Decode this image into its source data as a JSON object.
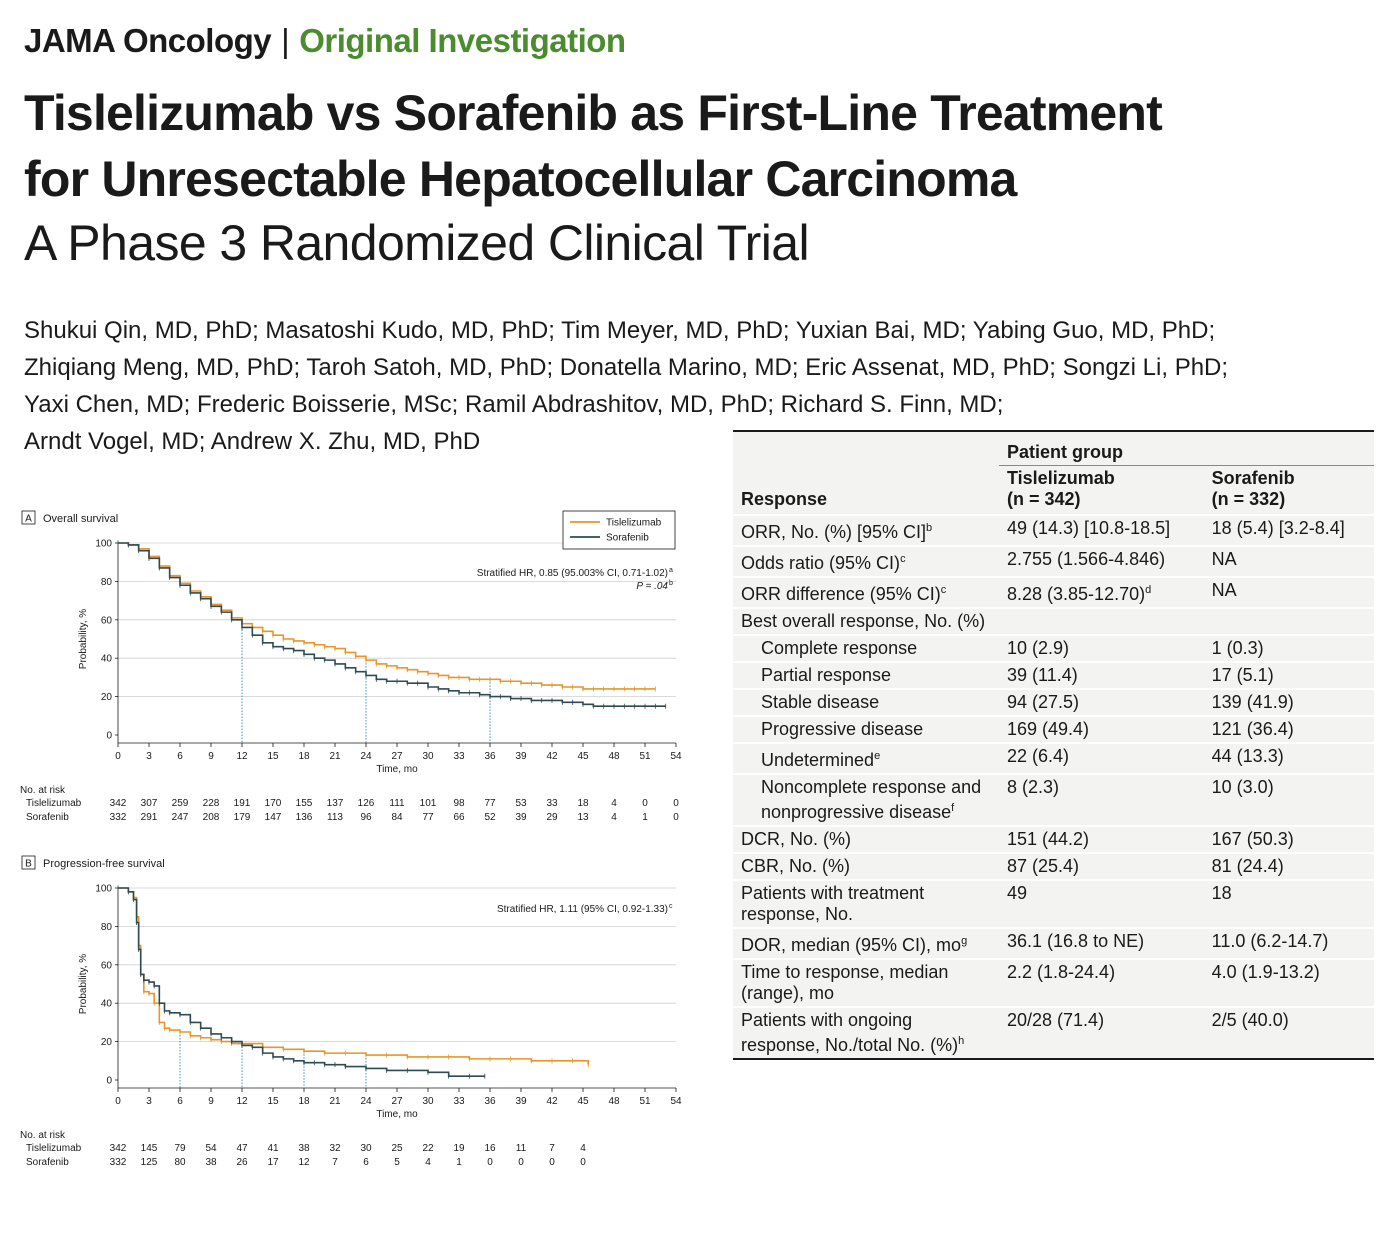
{
  "header": {
    "journal": "JAMA Oncology",
    "separator": "|",
    "section": "Original Investigation",
    "title_line1": "Tislelizumab vs Sorafenib as First-Line Treatment",
    "title_line2": "for Unresectable Hepatocellular Carcinoma",
    "subtitle": "A Phase 3 Randomized Clinical Trial",
    "authors": [
      "Shukui Qin, MD, PhD; Masatoshi Kudo, MD, PhD; Tim Meyer, MD, PhD; Yuxian Bai, MD; Yabing Guo, MD, PhD;",
      "Zhiqiang Meng, MD, PhD; Taroh Satoh, MD, PhD; Donatella Marino, MD; Eric Assenat, MD, PhD; Songzi Li, PhD;",
      "Yaxi Chen, MD; Frederic Boisserie, MSc; Ramil Abdrashitov, MD, PhD; Richard S. Finn, MD;",
      "Arndt Vogel, MD; Andrew X. Zhu, MD, PhD"
    ]
  },
  "colors": {
    "tislelizumab": "#e8952a",
    "sorafenib": "#2e4a55",
    "accent_green": "#4a8c2e"
  },
  "table": {
    "patient_group": "Patient group",
    "col_response": "Response",
    "col_tis": "Tislelizumab",
    "col_tis_n": "(n = 342)",
    "col_sor": "Sorafenib",
    "col_sor_n": "(n = 332)",
    "rows": [
      {
        "label": "ORR, No. (%) [95% CI]",
        "sup": "b",
        "tis": "49 (14.3) [10.8-18.5]",
        "tis_sup": "",
        "sor": "18 (5.4) [3.2-8.4]"
      },
      {
        "label": "Odds ratio (95% CI)",
        "sup": "c",
        "tis": "2.755 (1.566-4.846)",
        "tis_sup": "",
        "sor": "NA"
      },
      {
        "label": "ORR difference (95% CI)",
        "sup": "c",
        "tis": "8.28 (3.85-12.70)",
        "tis_sup": "d",
        "sor": "NA"
      },
      {
        "label": "Best overall response, No. (%)",
        "sup": "",
        "tis": "",
        "tis_sup": "",
        "sor": ""
      },
      {
        "label": "Complete response",
        "sup": "",
        "tis": "10 (2.9)",
        "tis_sup": "",
        "sor": "1 (0.3)",
        "indent": true
      },
      {
        "label": "Partial response",
        "sup": "",
        "tis": "39 (11.4)",
        "tis_sup": "",
        "sor": "17 (5.1)",
        "indent": true
      },
      {
        "label": "Stable disease",
        "sup": "",
        "tis": "94 (27.5)",
        "tis_sup": "",
        "sor": "139 (41.9)",
        "indent": true
      },
      {
        "label": "Progressive disease",
        "sup": "",
        "tis": "169 (49.4)",
        "tis_sup": "",
        "sor": "121 (36.4)",
        "indent": true
      },
      {
        "label": "Undetermined",
        "sup": "e",
        "tis": "22 (6.4)",
        "tis_sup": "",
        "sor": "44 (13.3)",
        "indent": true
      },
      {
        "label": "Noncomplete response and nonprogressive disease",
        "sup": "f",
        "tis": "8 (2.3)",
        "tis_sup": "",
        "sor": "10 (3.0)",
        "indent": true
      },
      {
        "label": "DCR, No. (%)",
        "sup": "",
        "tis": "151 (44.2)",
        "tis_sup": "",
        "sor": "167 (50.3)"
      },
      {
        "label": "CBR, No. (%)",
        "sup": "",
        "tis": "87 (25.4)",
        "tis_sup": "",
        "sor": "81 (24.4)"
      },
      {
        "label": "Patients with treatment response, No.",
        "sup": "",
        "tis": "49",
        "tis_sup": "",
        "sor": "18"
      },
      {
        "label": "DOR, median (95% CI), mo",
        "sup": "g",
        "tis": "36.1 (16.8 to NE)",
        "tis_sup": "",
        "sor": "11.0 (6.2-14.7)"
      },
      {
        "label": "Time to response, median (range), mo",
        "sup": "",
        "tis": "2.2 (1.8-24.4)",
        "tis_sup": "",
        "sor": "4.0 (1.9-13.2)"
      },
      {
        "label": "Patients with ongoing response, No./total No. (%)",
        "sup": "h",
        "tis": "20/28 (71.4)",
        "tis_sup": "",
        "sor": "2/5 (40.0)"
      }
    ]
  },
  "chart_data": [
    {
      "type": "line",
      "panel": "A",
      "title": "Overall survival",
      "xlabel": "Time, mo",
      "ylabel": "Probability, %",
      "xlim": [
        0,
        54
      ],
      "ylim": [
        0,
        100
      ],
      "xticks": [
        0,
        3,
        6,
        9,
        12,
        15,
        18,
        21,
        24,
        27,
        30,
        33,
        36,
        39,
        42,
        45,
        48,
        51,
        54
      ],
      "yticks": [
        0,
        20,
        40,
        60,
        80,
        100
      ],
      "grid": true,
      "legend": "top-right",
      "annotation_line1": "Stratified HR, 0.85 (95.003% CI, 0.71-1.02)",
      "annotation_line1_sup": "a",
      "annotation_line2": "P = .04",
      "annotation_line2_sup": "b",
      "reference_times": [
        12,
        24,
        36
      ],
      "series": [
        {
          "name": "Tislelizumab",
          "x": [
            0,
            1,
            2,
            3,
            4,
            5,
            6,
            7,
            8,
            9,
            10,
            11,
            12,
            13,
            14,
            15,
            16,
            17,
            18,
            19,
            20,
            21,
            22,
            23,
            24,
            25,
            26,
            27,
            28,
            29,
            30,
            31,
            32,
            33,
            34,
            35,
            36,
            37,
            38,
            39,
            40,
            41,
            42,
            43,
            44,
            45,
            46,
            47,
            48,
            49,
            50,
            51,
            52
          ],
          "y": [
            100,
            99,
            97,
            93,
            88,
            83,
            79,
            75,
            72,
            68,
            65,
            61,
            58,
            56,
            54,
            52,
            50,
            49,
            48,
            47,
            46,
            45,
            43,
            41,
            39,
            37,
            36,
            35,
            34,
            33,
            32,
            31,
            30,
            30,
            29,
            29,
            29,
            28,
            28,
            27,
            27,
            26,
            26,
            25,
            25,
            24,
            24,
            24,
            24,
            24,
            24,
            24,
            24
          ]
        },
        {
          "name": "Sorafenib",
          "x": [
            0,
            1,
            2,
            3,
            4,
            5,
            6,
            7,
            8,
            9,
            10,
            11,
            12,
            13,
            14,
            15,
            16,
            17,
            18,
            19,
            20,
            21,
            22,
            23,
            24,
            25,
            26,
            27,
            28,
            29,
            30,
            31,
            32,
            33,
            34,
            35,
            36,
            37,
            38,
            39,
            40,
            41,
            42,
            43,
            44,
            45,
            46,
            47,
            48,
            49,
            50,
            51,
            52,
            53
          ],
          "y": [
            100,
            99,
            96,
            92,
            87,
            82,
            78,
            74,
            71,
            67,
            64,
            60,
            56,
            52,
            48,
            46,
            45,
            44,
            42,
            40,
            39,
            37,
            35,
            33,
            31,
            29,
            28,
            28,
            27,
            27,
            25,
            24,
            23,
            22,
            22,
            21,
            20,
            20,
            19,
            19,
            18,
            18,
            18,
            17,
            17,
            16,
            15,
            15,
            15,
            15,
            15,
            15,
            15,
            15
          ]
        }
      ],
      "risk_table": {
        "label": "No. at risk",
        "rows": [
          {
            "name": "Tislelizumab",
            "values": [
              "342",
              "307",
              "259",
              "228",
              "191",
              "170",
              "155",
              "137",
              "126",
              "111",
              "101",
              "98",
              "77",
              "53",
              "33",
              "18",
              "4",
              "0",
              "0"
            ]
          },
          {
            "name": "Sorafenib",
            "values": [
              "332",
              "291",
              "247",
              "208",
              "179",
              "147",
              "136",
              "113",
              "96",
              "84",
              "77",
              "66",
              "52",
              "39",
              "29",
              "13",
              "4",
              "1",
              "0"
            ]
          }
        ]
      }
    },
    {
      "type": "line",
      "panel": "B",
      "title": "Progression-free survival",
      "xlabel": "Time, mo",
      "ylabel": "Probability, %",
      "xlim": [
        0,
        54
      ],
      "ylim": [
        0,
        100
      ],
      "xticks": [
        0,
        3,
        6,
        9,
        12,
        15,
        18,
        21,
        24,
        27,
        30,
        33,
        36,
        39,
        42,
        45,
        48,
        51,
        54
      ],
      "yticks": [
        0,
        20,
        40,
        60,
        80,
        100
      ],
      "grid": true,
      "annotation_line1": "Stratified HR, 1.11 (95% CI, 0.92-1.33)",
      "annotation_line1_sup": "c",
      "reference_times": [
        6,
        12,
        18,
        24
      ],
      "series": [
        {
          "name": "Tislelizumab",
          "x": [
            0,
            1,
            1.5,
            1.8,
            2,
            2.2,
            2.5,
            3,
            3.5,
            4,
            4.5,
            5,
            6,
            7,
            8,
            9,
            10,
            11,
            12,
            14,
            16,
            18,
            20,
            22,
            24,
            26,
            28,
            30,
            32,
            34,
            36,
            38,
            40,
            42,
            44,
            45.5
          ],
          "y": [
            100,
            98,
            95,
            85,
            70,
            55,
            46,
            45,
            40,
            30,
            27,
            26,
            25,
            23,
            22,
            21,
            20,
            19,
            19,
            17,
            16,
            15,
            14,
            14,
            13,
            13,
            12,
            12,
            12,
            11,
            11,
            11,
            10,
            10,
            10,
            8
          ]
        },
        {
          "name": "Sorafenib",
          "x": [
            0,
            1,
            1.5,
            1.8,
            2,
            2.2,
            2.5,
            3,
            3.5,
            4,
            4.5,
            5,
            6,
            7,
            8,
            9,
            10,
            11,
            12,
            13,
            14,
            15,
            16,
            17,
            18,
            19,
            20,
            21,
            22,
            24,
            26,
            28,
            30,
            32,
            34,
            35.5
          ],
          "y": [
            100,
            98,
            94,
            82,
            68,
            55,
            52,
            51,
            49,
            40,
            36,
            35,
            34,
            30,
            27,
            24,
            22,
            20,
            18,
            17,
            14,
            12,
            11,
            10,
            9,
            9,
            8,
            8,
            7,
            6,
            5,
            5,
            4,
            2,
            2,
            2
          ]
        }
      ],
      "risk_table": {
        "label": "No. at risk",
        "rows": [
          {
            "name": "Tislelizumab",
            "values": [
              "342",
              "145",
              "79",
              "54",
              "47",
              "41",
              "38",
              "32",
              "30",
              "25",
              "22",
              "19",
              "16",
              "11",
              "7",
              "4",
              "",
              "",
              ""
            ]
          },
          {
            "name": "Sorafenib",
            "values": [
              "332",
              "125",
              "80",
              "38",
              "26",
              "17",
              "12",
              "7",
              "6",
              "5",
              "4",
              "1",
              "0",
              "0",
              "0",
              "0",
              "",
              "",
              ""
            ]
          }
        ]
      }
    }
  ]
}
